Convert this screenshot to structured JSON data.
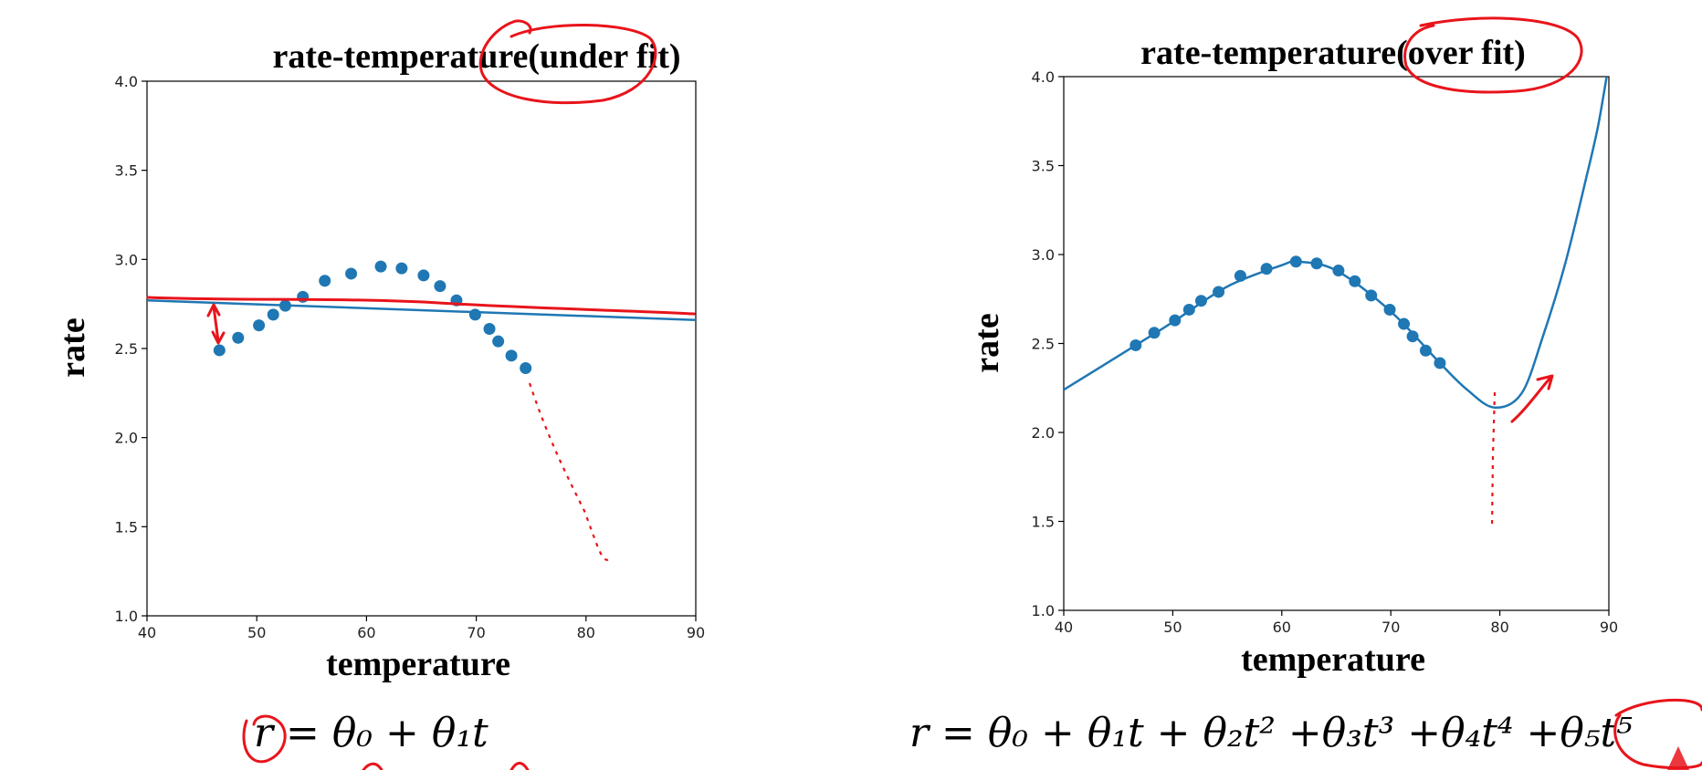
{
  "chart_data": [
    {
      "type": "scatter",
      "title_main": "rate-temperature",
      "title_paren": "(under fit)",
      "xlabel": "temperature",
      "ylabel": "rate",
      "xlim": [
        40,
        90
      ],
      "ylim": [
        1.0,
        4.0
      ],
      "xticks": [
        "40",
        "50",
        "60",
        "70",
        "80",
        "90"
      ],
      "yticks": [
        "1.0",
        "1.5",
        "2.0",
        "2.5",
        "3.0",
        "3.5",
        "4.0"
      ],
      "points_x": [
        46.6,
        48.3,
        50.2,
        51.5,
        52.6,
        54.2,
        56.2,
        58.6,
        61.3,
        63.2,
        65.2,
        66.7,
        68.2,
        69.9,
        71.2,
        72.0,
        73.2,
        74.5
      ],
      "points_y": [
        2.49,
        2.56,
        2.63,
        2.69,
        2.74,
        2.79,
        2.88,
        2.92,
        2.96,
        2.95,
        2.91,
        2.85,
        2.77,
        2.69,
        2.61,
        2.54,
        2.46,
        2.39
      ],
      "fit_line": {
        "x": [
          40,
          90
        ],
        "y": [
          2.77,
          2.66
        ]
      },
      "formula": "r = θ₀ + θ₁t"
    },
    {
      "type": "scatter",
      "title_main": "rate-temperature",
      "title_paren": "(over fit)",
      "xlabel": "temperature",
      "ylabel": "rate",
      "xlim": [
        40,
        90
      ],
      "ylim": [
        1.0,
        4.0
      ],
      "xticks": [
        "40",
        "50",
        "60",
        "70",
        "80",
        "90"
      ],
      "yticks": [
        "1.0",
        "1.5",
        "2.0",
        "2.5",
        "3.0",
        "3.5",
        "4.0"
      ],
      "points_x": [
        46.6,
        48.3,
        50.2,
        51.5,
        52.6,
        54.2,
        56.2,
        58.6,
        61.3,
        63.2,
        65.2,
        66.7,
        68.2,
        69.9,
        71.2,
        72.0,
        73.2,
        74.5
      ],
      "points_y": [
        2.49,
        2.56,
        2.63,
        2.69,
        2.74,
        2.79,
        2.88,
        2.92,
        2.96,
        2.95,
        2.91,
        2.85,
        2.77,
        2.69,
        2.61,
        2.54,
        2.46,
        2.39
      ],
      "fit_curve": {
        "x": [
          40,
          46.6,
          50,
          55,
          60,
          61.5,
          65,
          70,
          74.5,
          77,
          79.5,
          82,
          84,
          86,
          88,
          89,
          89.8
        ],
        "y": [
          2.24,
          2.49,
          2.62,
          2.82,
          2.94,
          2.96,
          2.91,
          2.68,
          2.39,
          2.24,
          2.14,
          2.22,
          2.55,
          2.95,
          3.45,
          3.72,
          4.0
        ]
      },
      "formula": "r = θ₀ + θ₁t + θ₂t² +θ₃t³ +θ₄t⁴ +θ₅t⁵"
    }
  ]
}
